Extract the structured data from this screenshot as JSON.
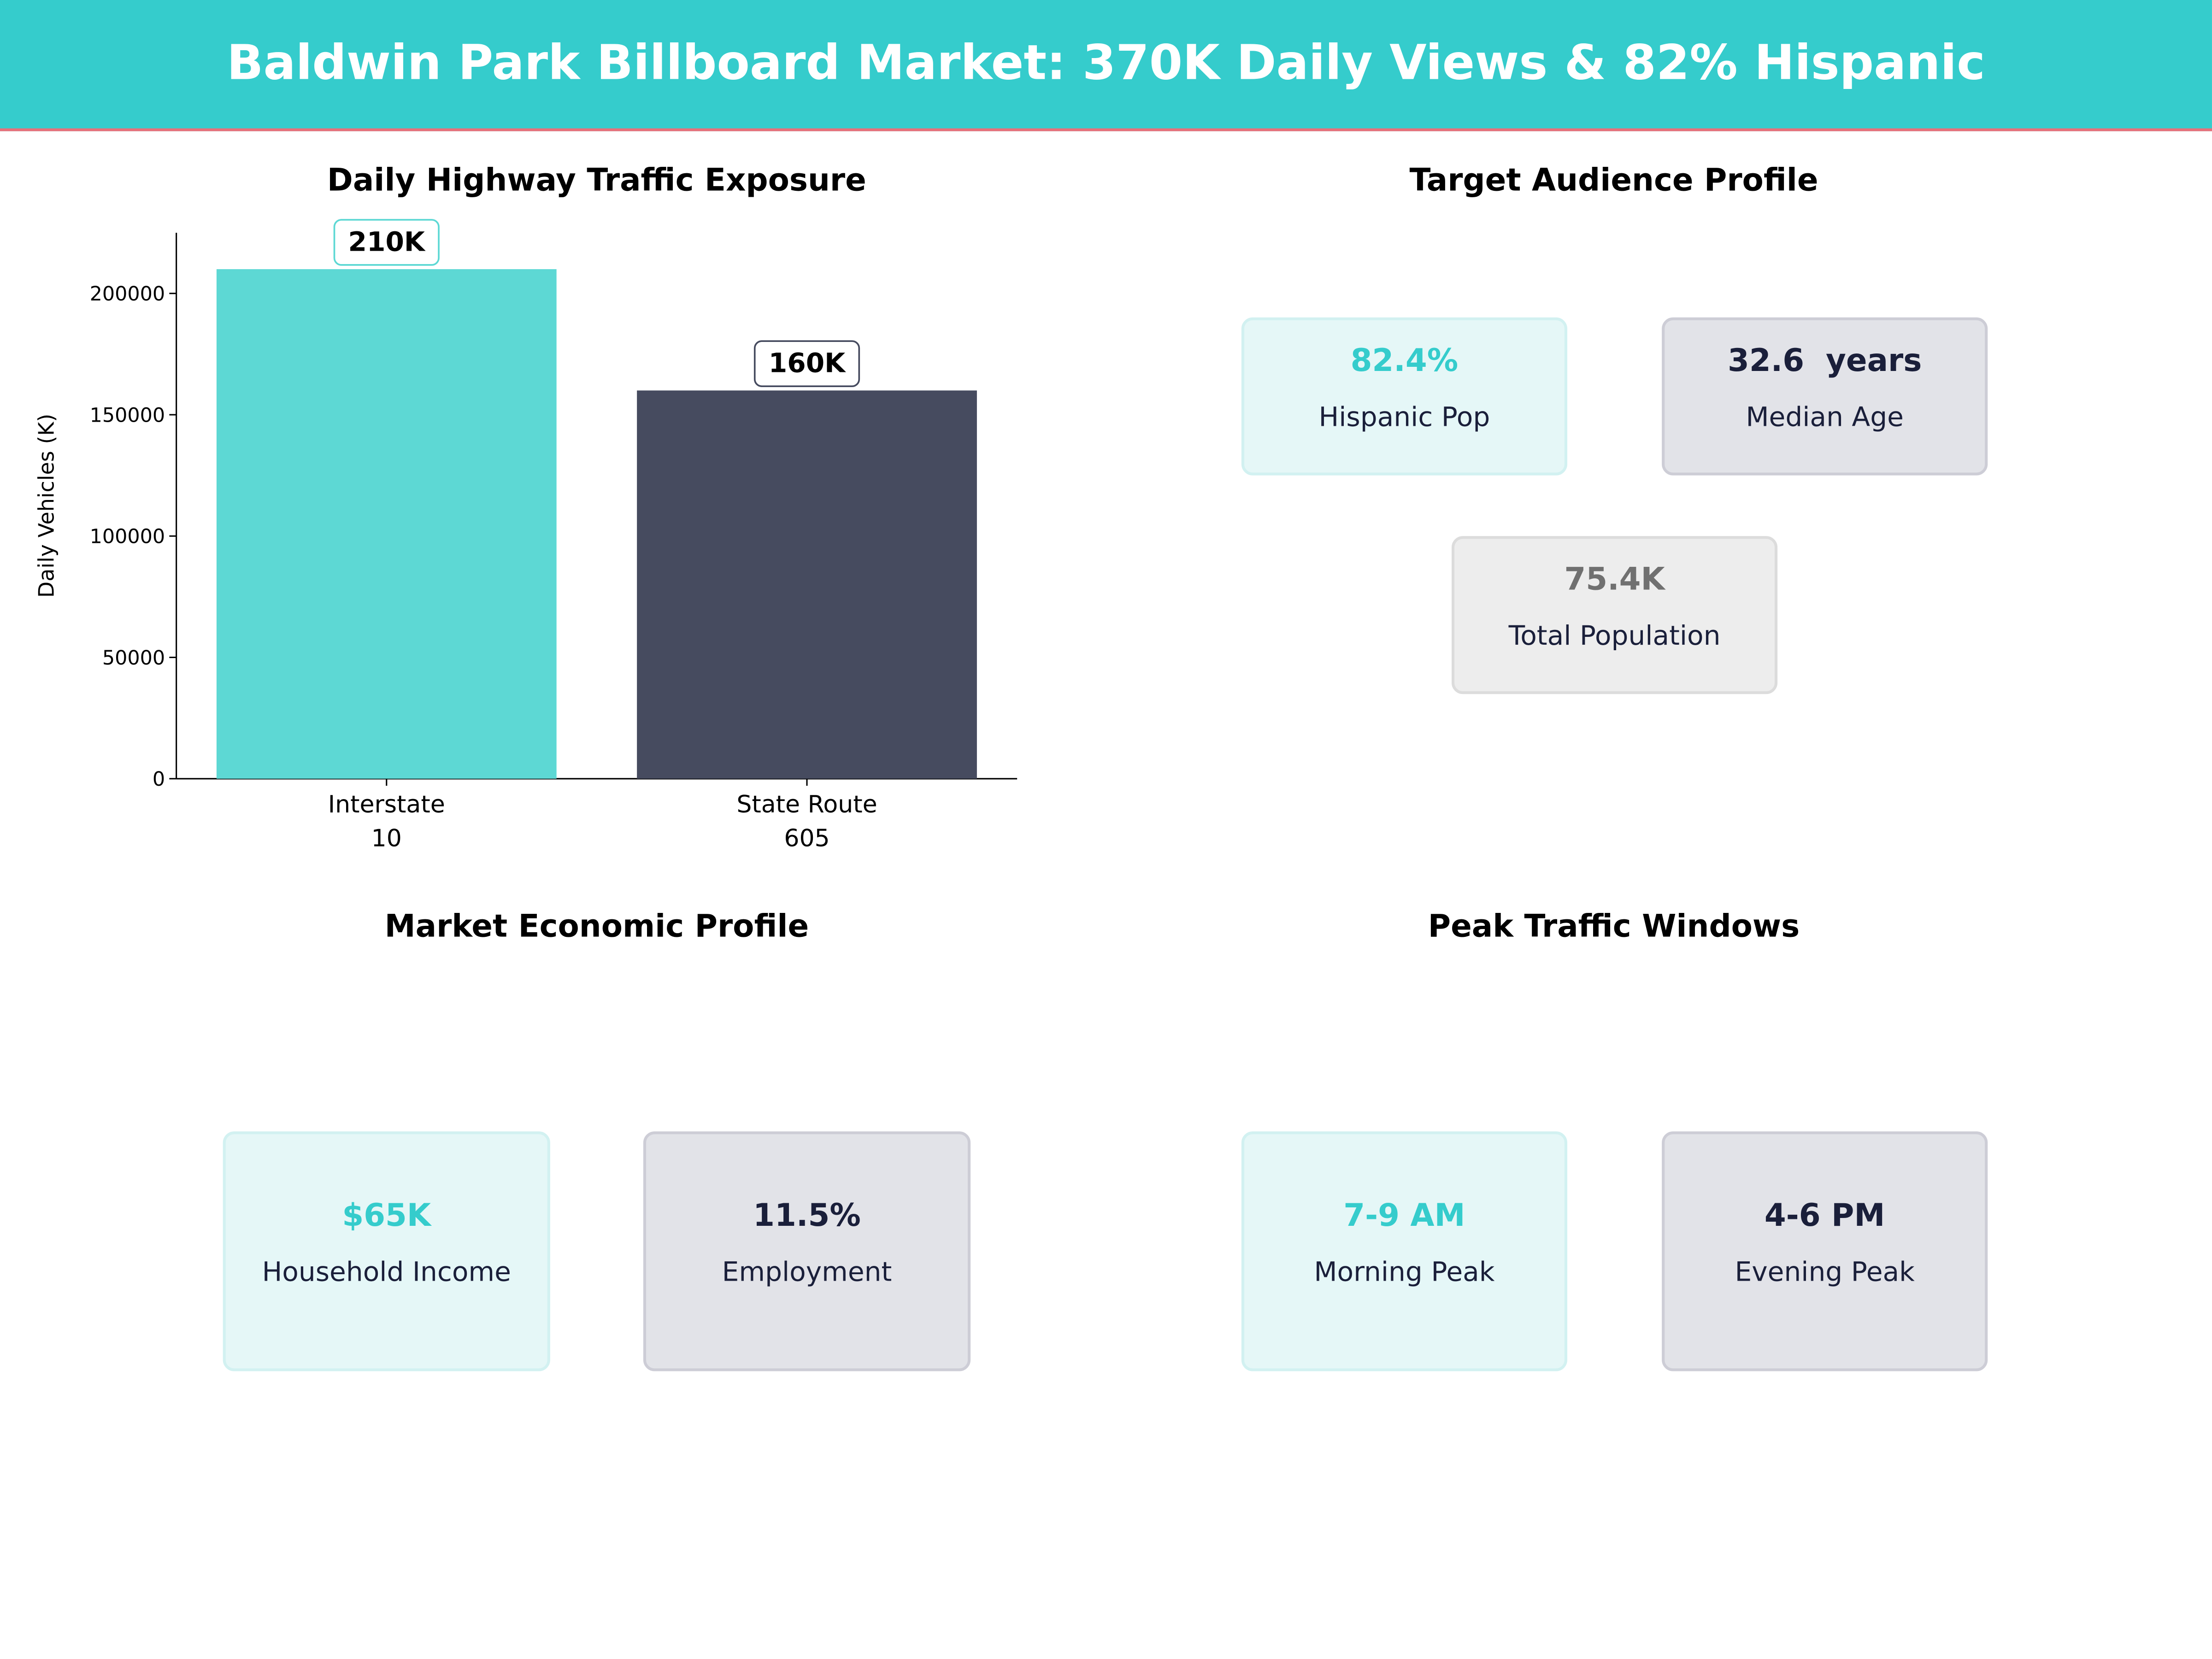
{
  "header": {
    "title": "Baldwin Park Billboard Market: 370K Daily Views & 82% Hispanic",
    "bg_color": "#35CCCC",
    "accent_line_color": "#E8707A"
  },
  "chart_data": {
    "type": "bar",
    "title": "Daily Highway Traffic Exposure",
    "categories": [
      "Interstate\n10",
      "State Route\n605"
    ],
    "category_lines": [
      [
        "Interstate",
        "10"
      ],
      [
        "State Route",
        "605"
      ]
    ],
    "values": [
      210000,
      160000
    ],
    "data_labels": [
      "210K",
      "160K"
    ],
    "colors": [
      "#5DD8D4",
      "#464B5F"
    ],
    "ylabel": "Daily Vehicles (K)",
    "xlabel": "",
    "ylim": [
      0,
      225000
    ],
    "yticks": [
      0,
      50000,
      100000,
      150000,
      200000
    ],
    "ytick_labels": [
      "0",
      "50000",
      "100000",
      "150000",
      "200000"
    ],
    "grid": false
  },
  "audience": {
    "title": "Target Audience Profile",
    "cards": [
      {
        "value": "82.4%",
        "label": "Hispanic Pop"
      },
      {
        "value": "32.6  years",
        "label": "Median Age"
      },
      {
        "value": "75.4K",
        "label": "Total Population"
      }
    ]
  },
  "economic": {
    "title": "Market Economic Profile",
    "cards": [
      {
        "value": "$65K",
        "label": "Household Income"
      },
      {
        "value": "11.5%",
        "label": "Employment"
      }
    ]
  },
  "peak": {
    "title": "Peak Traffic Windows",
    "cards": [
      {
        "value": "7-9 AM",
        "label": "Morning Peak"
      },
      {
        "value": "4-6 PM",
        "label": "Evening Peak"
      }
    ]
  }
}
